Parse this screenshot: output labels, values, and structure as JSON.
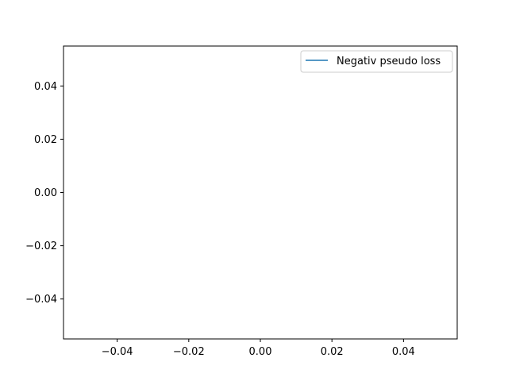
{
  "chart_data": {
    "type": "line",
    "title": "",
    "xlabel": "",
    "ylabel": "",
    "xlim": [
      -0.055,
      0.055
    ],
    "ylim": [
      -0.055,
      0.055
    ],
    "x_ticks": [
      -0.04,
      -0.02,
      0.0,
      0.02,
      0.04
    ],
    "x_tick_labels": [
      "−0.04",
      "−0.02",
      "0.00",
      "0.02",
      "0.04"
    ],
    "y_ticks": [
      0.04,
      0.02,
      0.0,
      -0.02,
      -0.04
    ],
    "y_tick_labels": [
      "0.04",
      "0.02",
      "0.00",
      "−0.02",
      "−0.04"
    ],
    "grid": false,
    "legend_position": "top-right",
    "series": [
      {
        "name": "Negativ pseudo loss",
        "color": "#1f77b4",
        "x": [],
        "y": []
      }
    ]
  }
}
